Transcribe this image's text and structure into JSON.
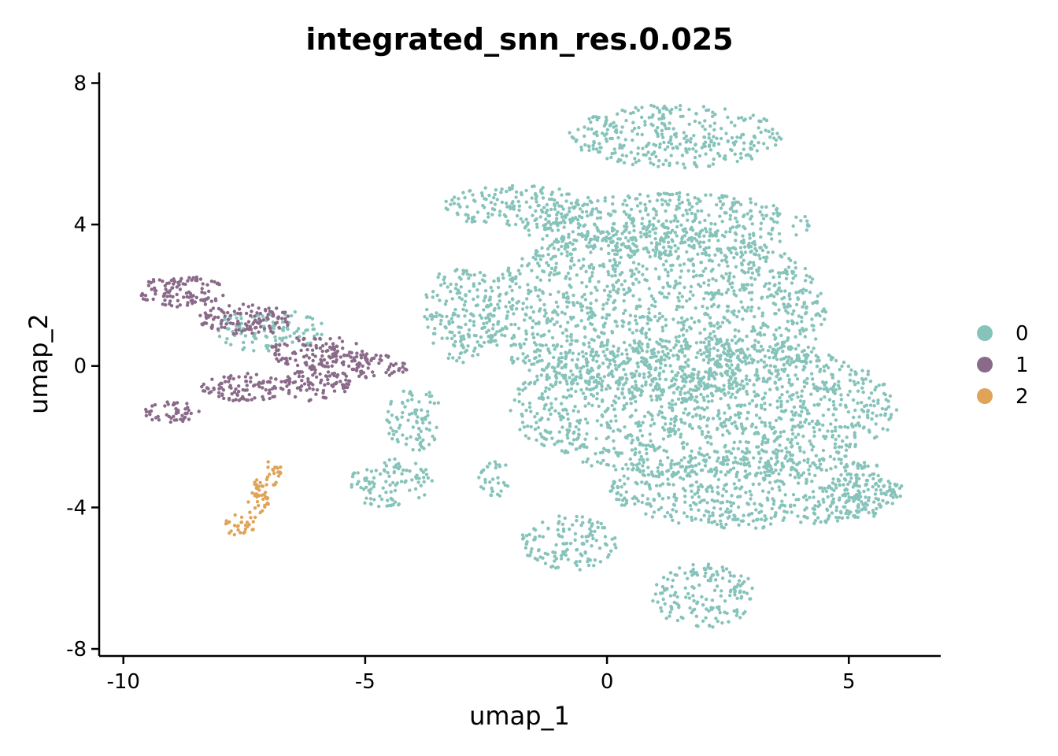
{
  "chart_data": {
    "type": "scatter",
    "title": "integrated_snn_res.0.025",
    "xlabel": "umap_1",
    "ylabel": "umap_2",
    "xlim": [
      -10.5,
      6.9
    ],
    "ylim": [
      -8.2,
      8.3
    ],
    "x_ticks": [
      -10,
      -5,
      0,
      5
    ],
    "y_ticks": [
      8,
      4,
      0,
      -4,
      -8
    ],
    "grid": false,
    "legend_position": "right",
    "series": [
      {
        "name": "0",
        "color": "#86C3BA",
        "regions": [
          {
            "cx": 1.5,
            "cy": 6.5,
            "rx": 2.3,
            "ry": 0.9
          },
          {
            "cx": -1.8,
            "cy": 4.5,
            "rx": 1.6,
            "ry": 0.6
          },
          {
            "cx": 1.2,
            "cy": 4.0,
            "rx": 3.0,
            "ry": 0.9
          },
          {
            "cx": 1.0,
            "cy": 1.5,
            "rx": 3.6,
            "ry": 2.5
          },
          {
            "cx": 2.0,
            "cy": -1.2,
            "rx": 4.0,
            "ry": 2.0
          },
          {
            "cx": 3.0,
            "cy": -3.5,
            "rx": 3.0,
            "ry": 1.1
          },
          {
            "cx": 5.3,
            "cy": -3.5,
            "rx": 0.8,
            "ry": 0.8
          },
          {
            "cx": 2.0,
            "cy": -6.5,
            "rx": 1.1,
            "ry": 0.9
          },
          {
            "cx": -0.8,
            "cy": -5.0,
            "rx": 1.0,
            "ry": 0.8
          },
          {
            "cx": -4.5,
            "cy": -3.3,
            "rx": 0.9,
            "ry": 0.7
          },
          {
            "cx": -4.0,
            "cy": -1.5,
            "rx": 0.6,
            "ry": 0.9
          },
          {
            "cx": -3.0,
            "cy": 1.5,
            "rx": 0.8,
            "ry": 1.4
          },
          {
            "cx": -7.0,
            "cy": 1.0,
            "rx": 1.2,
            "ry": 0.6
          },
          {
            "cx": -2.3,
            "cy": -3.2,
            "rx": 0.4,
            "ry": 0.5
          }
        ]
      },
      {
        "name": "1",
        "color": "#8A6A89",
        "regions": [
          {
            "cx": -8.8,
            "cy": 2.1,
            "rx": 0.9,
            "ry": 0.45
          },
          {
            "cx": -7.5,
            "cy": 1.3,
            "rx": 1.0,
            "ry": 0.45
          },
          {
            "cx": -6.0,
            "cy": 0.4,
            "rx": 1.0,
            "ry": 0.45
          },
          {
            "cx": -4.8,
            "cy": 0.0,
            "rx": 0.7,
            "ry": 0.35
          },
          {
            "cx": -9.0,
            "cy": -1.3,
            "rx": 0.6,
            "ry": 0.3
          },
          {
            "cx": -7.5,
            "cy": -0.6,
            "rx": 0.9,
            "ry": 0.4
          },
          {
            "cx": -6.0,
            "cy": -0.5,
            "rx": 0.7,
            "ry": 0.5
          }
        ]
      },
      {
        "name": "2",
        "color": "#E0A458",
        "regions": [
          {
            "cx": -7.6,
            "cy": -4.5,
            "rx": 0.35,
            "ry": 0.3
          },
          {
            "cx": -7.2,
            "cy": -3.8,
            "rx": 0.25,
            "ry": 0.6
          },
          {
            "cx": -6.9,
            "cy": -3.0,
            "rx": 0.2,
            "ry": 0.4
          }
        ]
      }
    ]
  }
}
